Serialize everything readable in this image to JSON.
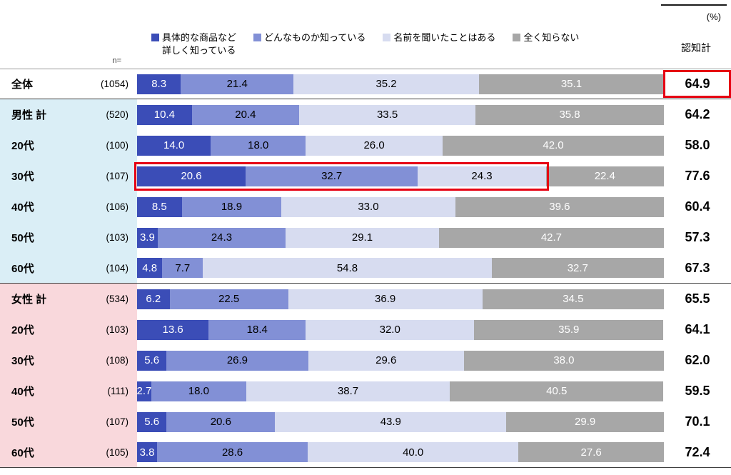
{
  "header": {
    "unit": "(%)",
    "n_label": "n=",
    "awareness_total_label": "認知計"
  },
  "colors": {
    "highlight_red": "#e60012",
    "divider": "#404040",
    "band_male": "#daeef6",
    "band_female": "#f9d8dc"
  },
  "legend": [
    {
      "label": "具体的な商品など\n詳しく知っている",
      "color": "#3b4db7",
      "text_color": "#ffffff"
    },
    {
      "label": "どんなものか知っている",
      "color": "#8290d6",
      "text_color": "#000000"
    },
    {
      "label": "名前を聞いたことはある",
      "color": "#d7dcf0",
      "text_color": "#000000"
    },
    {
      "label": "全く知らない",
      "color": "#a7a7a7",
      "text_color": "#ffffff"
    }
  ],
  "chart_data": {
    "type": "bar",
    "stacked": true,
    "orientation": "horizontal",
    "value_unit": "%",
    "xlim": [
      0,
      100
    ],
    "series": [
      "具体的な商品など詳しく知っている",
      "どんなものか知っている",
      "名前を聞いたことはある",
      "全く知らない"
    ],
    "total_column_label": "認知計",
    "rows": [
      {
        "label": "全体",
        "n": "(1054)",
        "group": "all",
        "values": [
          8.3,
          21.4,
          35.2,
          35.1
        ],
        "total": 64.9,
        "highlight_total": true
      },
      {
        "label": "男性 計",
        "n": "(520)",
        "group": "male",
        "values": [
          10.4,
          20.4,
          33.5,
          35.8
        ],
        "total": 64.2
      },
      {
        "label": "20代",
        "n": "(100)",
        "group": "male",
        "values": [
          14.0,
          18.0,
          26.0,
          42.0
        ],
        "total": 58.0
      },
      {
        "label": "30代",
        "n": "(107)",
        "group": "male",
        "values": [
          20.6,
          32.7,
          24.3,
          22.4
        ],
        "total": 77.6,
        "highlight_segments": 3
      },
      {
        "label": "40代",
        "n": "(106)",
        "group": "male",
        "values": [
          8.5,
          18.9,
          33.0,
          39.6
        ],
        "total": 60.4
      },
      {
        "label": "50代",
        "n": "(103)",
        "group": "male",
        "values": [
          3.9,
          24.3,
          29.1,
          42.7
        ],
        "total": 57.3
      },
      {
        "label": "60代",
        "n": "(104)",
        "group": "male",
        "values": [
          4.8,
          7.7,
          54.8,
          32.7
        ],
        "total": 67.3
      },
      {
        "label": "女性 計",
        "n": "(534)",
        "group": "female",
        "values": [
          6.2,
          22.5,
          36.9,
          34.5
        ],
        "total": 65.5
      },
      {
        "label": "20代",
        "n": "(103)",
        "group": "female",
        "values": [
          13.6,
          18.4,
          32.0,
          35.9
        ],
        "total": 64.1
      },
      {
        "label": "30代",
        "n": "(108)",
        "group": "female",
        "values": [
          5.6,
          26.9,
          29.6,
          38.0
        ],
        "total": 62.0
      },
      {
        "label": "40代",
        "n": "(111)",
        "group": "female",
        "values": [
          2.7,
          18.0,
          38.7,
          40.5
        ],
        "total": 59.5
      },
      {
        "label": "50代",
        "n": "(107)",
        "group": "female",
        "values": [
          5.6,
          20.6,
          43.9,
          29.9
        ],
        "total": 70.1
      },
      {
        "label": "60代",
        "n": "(105)",
        "group": "female",
        "values": [
          3.8,
          28.6,
          40.0,
          27.6
        ],
        "total": 72.4
      }
    ]
  }
}
